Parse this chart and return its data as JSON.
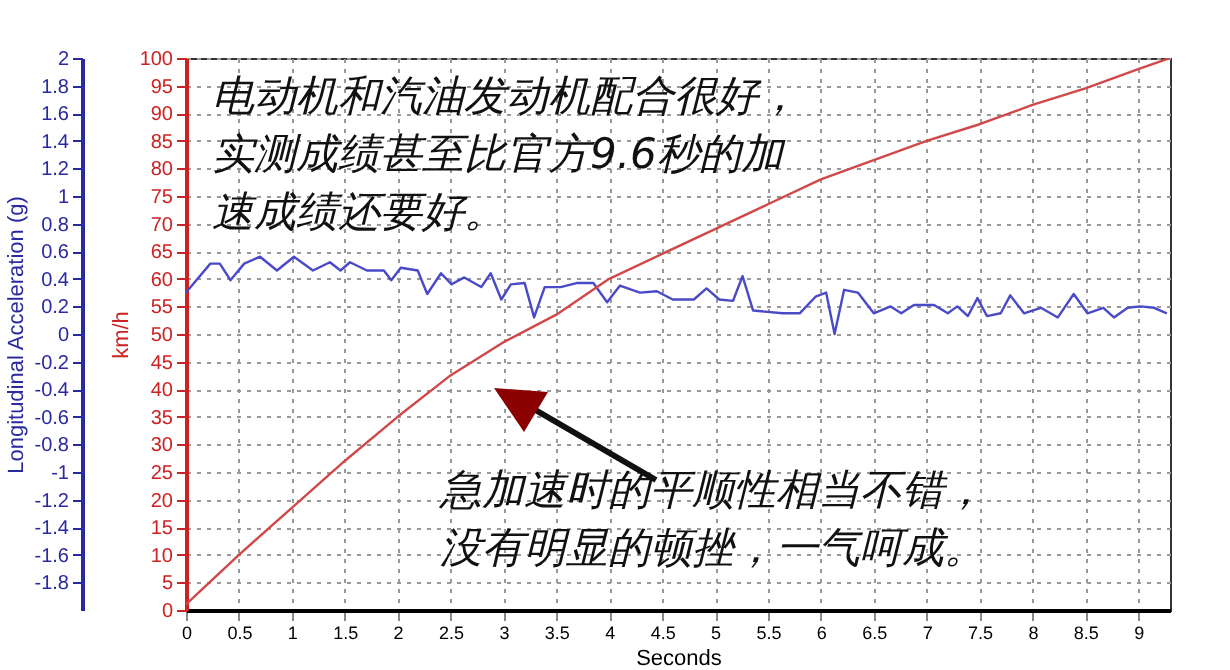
{
  "chart_data": {
    "type": "line",
    "xlabel": "Seconds",
    "ylabel": "Longitudinal Acceleration (g)",
    "y2label": "km/h",
    "xlim": [
      0,
      9.3
    ],
    "xticks": [
      0,
      0.5,
      1,
      1.5,
      2,
      2.5,
      3,
      3.5,
      4,
      4.5,
      5,
      5.5,
      6,
      6.5,
      7,
      7.5,
      8,
      8.5,
      9
    ],
    "ylim": [
      -2,
      2
    ],
    "yticks": [
      -1.8,
      -1.6,
      -1.4,
      -1.2,
      -1,
      -0.8,
      -0.6,
      -0.4,
      -0.2,
      0,
      0.2,
      0.4,
      0.6,
      0.8,
      1,
      1.2,
      1.4,
      1.6,
      1.8,
      2
    ],
    "y2lim": [
      0,
      100
    ],
    "y2ticks": [
      0,
      5,
      10,
      15,
      20,
      25,
      30,
      35,
      40,
      45,
      50,
      55,
      60,
      65,
      70,
      75,
      80,
      85,
      90,
      95,
      100
    ],
    "grid": true,
    "marker": "none",
    "line_style": "solid",
    "series": [
      {
        "color": "#4a4ac8",
        "axis": "y",
        "x": [
          0,
          0.23,
          0.32,
          0.42,
          0.55,
          0.7,
          0.86,
          1.02,
          1.2,
          1.36,
          1.46,
          1.55,
          1.71,
          1.87,
          1.94,
          2.03,
          2.19,
          2.28,
          2.41,
          2.51,
          2.63,
          2.79,
          2.88,
          2.98,
          3.07,
          3.2,
          3.29,
          3.39,
          3.54,
          3.7,
          3.85,
          3.98,
          4.1,
          4.29,
          4.45,
          4.6,
          4.8,
          4.92,
          5.04,
          5.17,
          5.26,
          5.36,
          5.64,
          5.8,
          5.95,
          6.05,
          6.13,
          6.22,
          6.35,
          6.5,
          6.66,
          6.76,
          6.88,
          7.07,
          7.2,
          7.29,
          7.39,
          7.48,
          7.57,
          7.7,
          7.79,
          7.92,
          8.08,
          8.24,
          8.39,
          8.52,
          8.67,
          8.77,
          8.9,
          9.02,
          9.15,
          9.27
        ],
        "values": [
          0.3,
          0.51,
          0.51,
          0.39,
          0.51,
          0.56,
          0.46,
          0.56,
          0.46,
          0.52,
          0.46,
          0.52,
          0.46,
          0.46,
          0.39,
          0.48,
          0.46,
          0.29,
          0.44,
          0.36,
          0.41,
          0.34,
          0.44,
          0.25,
          0.36,
          0.37,
          0.12,
          0.34,
          0.34,
          0.37,
          0.37,
          0.23,
          0.35,
          0.3,
          0.31,
          0.25,
          0.25,
          0.33,
          0.25,
          0.24,
          0.42,
          0.17,
          0.15,
          0.15,
          0.27,
          0.3,
          0.0,
          0.32,
          0.3,
          0.15,
          0.2,
          0.15,
          0.21,
          0.21,
          0.15,
          0.2,
          0.13,
          0.26,
          0.13,
          0.15,
          0.28,
          0.15,
          0.19,
          0.12,
          0.29,
          0.15,
          0.19,
          0.12,
          0.19,
          0.2,
          0.19,
          0.15
        ]
      },
      {
        "color": "#d04848",
        "axis": "y2",
        "x": [
          0,
          0.5,
          1,
          1.5,
          2,
          2.5,
          3,
          3.5,
          4,
          4.5,
          5,
          5.5,
          6,
          6.5,
          7,
          7.5,
          8,
          8.5,
          9,
          9.3
        ],
        "values": [
          1,
          10,
          18.5,
          27,
          35,
          42.5,
          48.5,
          53.5,
          60,
          64.5,
          69,
          73.5,
          78,
          81.5,
          85,
          88,
          91.5,
          94.5,
          98,
          100
        ]
      }
    ],
    "annotations": [
      "电动机和汽油发动机配合很好，实测成绩甚至比官方9.6秒的加速成绩还要好。",
      "急加速时的平顺性相当不错，没有明显的顿挫，一气呵成。"
    ]
  }
}
